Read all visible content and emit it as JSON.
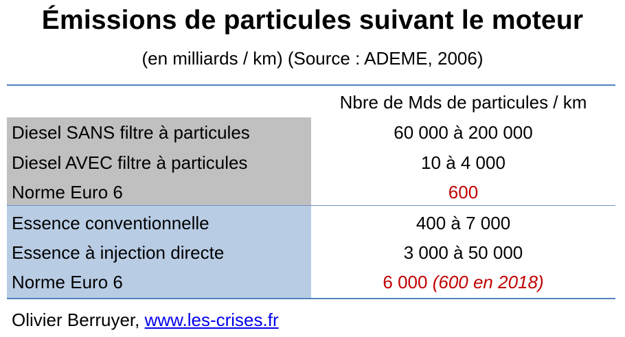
{
  "title": "Émissions de particules suivant le moteur",
  "subtitle": "(en milliards / km) (Source : ADEME, 2006)",
  "chart_data": {
    "type": "table",
    "title": "Émissions de particules suivant le moteur",
    "subtitle": "(en milliards / km) (Source : ADEME, 2006)",
    "column_header": "Nbre de Mds de particules / km",
    "colors": {
      "diesel_group": "#c0c0c0",
      "essence_group": "#b8cce4",
      "rule": "#4f81bd",
      "highlight": "#c00000"
    },
    "groups": [
      {
        "rows": [
          {
            "label": "Diesel SANS filtre à particules",
            "value": "60 000 à 200 000"
          },
          {
            "label": "Diesel AVEC filtre à particules",
            "value": "10 à 4 000"
          },
          {
            "label": "Norme Euro 6",
            "value": "600",
            "highlight": true
          }
        ]
      },
      {
        "rows": [
          {
            "label": "Essence conventionnelle",
            "value": "400 à 7 000"
          },
          {
            "label": "Essence à injection directe",
            "value": "3 000 à 50 000"
          },
          {
            "label": "Norme Euro 6",
            "value": "6 000",
            "note": "(600 en 2018)",
            "highlight": true
          }
        ]
      }
    ]
  },
  "footer": {
    "author": "Olivier Berruyer, ",
    "link_text": "www.les-crises.fr"
  }
}
